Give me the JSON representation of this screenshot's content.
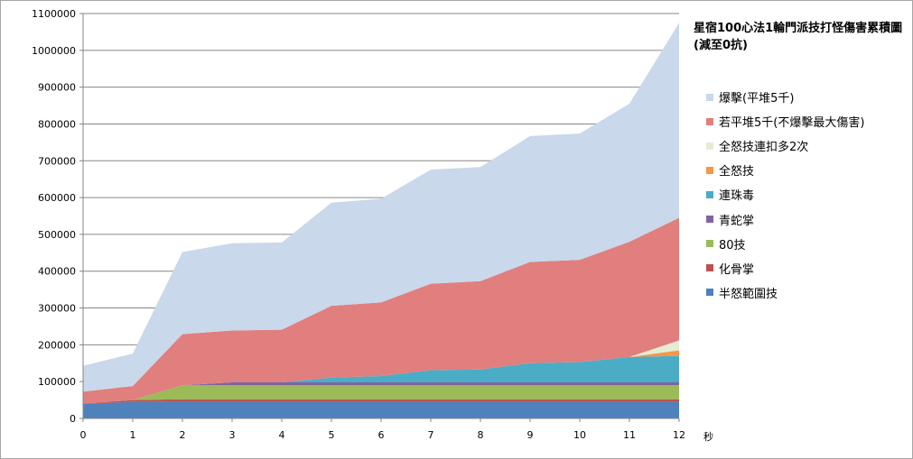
{
  "chart_data": {
    "type": "area",
    "stacked": true,
    "title": "星宿100心法1輪門派技打怪傷害累積圖 (減至0抗)",
    "xlabel": "秒",
    "ylabel": "",
    "x": [
      0,
      1,
      2,
      3,
      4,
      5,
      6,
      7,
      8,
      9,
      10,
      11,
      12
    ],
    "x_ticks": [
      "0",
      "1",
      "2",
      "3",
      "4",
      "5",
      "6",
      "7",
      "8",
      "9",
      "10",
      "11",
      "12"
    ],
    "ylim": [
      0,
      1100000
    ],
    "y_ticks": [
      "0",
      "100000",
      "200000",
      "300000",
      "400000",
      "500000",
      "600000",
      "700000",
      "800000",
      "900000",
      "1000000",
      "1100000"
    ],
    "y_tick_values": [
      0,
      100000,
      200000,
      300000,
      400000,
      500000,
      600000,
      700000,
      800000,
      900000,
      1000000,
      1100000
    ],
    "grid": true,
    "legend_position": "right",
    "series": [
      {
        "name": "半怒範圍技",
        "color": "#4f81bd",
        "values": [
          40000,
          45000,
          45000,
          45000,
          45000,
          45000,
          45000,
          45000,
          45000,
          45000,
          45000,
          45000,
          45000
        ]
      },
      {
        "name": "化骨掌",
        "color": "#c0504d",
        "values": [
          0,
          5000,
          7000,
          7000,
          7000,
          7000,
          7000,
          7000,
          7000,
          7000,
          7000,
          7000,
          7000
        ]
      },
      {
        "name": "80技",
        "color": "#9bbb59",
        "values": [
          0,
          0,
          38000,
          38000,
          38000,
          38000,
          38000,
          38000,
          38000,
          38000,
          38000,
          38000,
          38000
        ]
      },
      {
        "name": "青蛇掌",
        "color": "#8064a2",
        "values": [
          0,
          0,
          0,
          8000,
          8000,
          8000,
          8000,
          8000,
          8000,
          8000,
          8000,
          8000,
          8000
        ]
      },
      {
        "name": "連珠毒",
        "color": "#4bacc6",
        "values": [
          0,
          0,
          0,
          0,
          0,
          13000,
          17000,
          33000,
          35000,
          52000,
          55000,
          69000,
          72000
        ]
      },
      {
        "name": "全怒技",
        "color": "#f79646",
        "values": [
          0,
          0,
          0,
          0,
          0,
          0,
          0,
          0,
          0,
          0,
          0,
          0,
          15000
        ]
      },
      {
        "name": "全怒技連扣多2次",
        "color": "#e6ebd3",
        "values": [
          0,
          0,
          0,
          0,
          0,
          0,
          0,
          0,
          0,
          0,
          0,
          0,
          27000
        ]
      },
      {
        "name": "若平堆5千(不爆擊最大傷害)",
        "color": "#e07f7e",
        "values": [
          33000,
          38000,
          139000,
          141000,
          143000,
          195000,
          200000,
          235000,
          240000,
          275000,
          278000,
          313000,
          333000
        ]
      },
      {
        "name": "爆擊(平堆5千)",
        "color": "#c9d8eb",
        "values": [
          70000,
          88000,
          223000,
          237000,
          237000,
          280000,
          282000,
          310000,
          310000,
          342000,
          343000,
          375000,
          530000
        ]
      }
    ]
  }
}
